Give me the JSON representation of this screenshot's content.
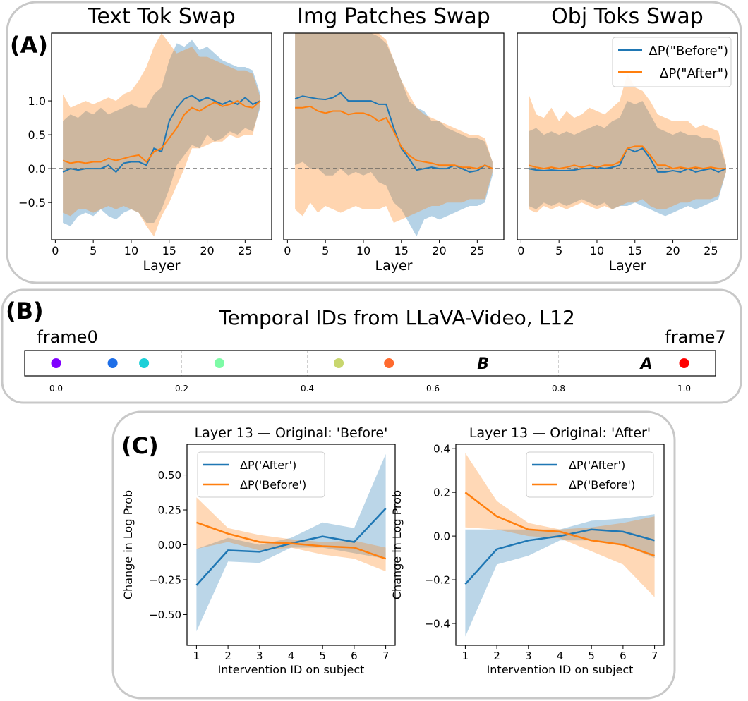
{
  "panel_labels": {
    "a": "(A)",
    "b": "(B)",
    "c": "(C)"
  },
  "legend_a": [
    {
      "label": "ΔP(\"Before\")",
      "color": "#1f77b4"
    },
    {
      "label": "ΔP(\"After\")",
      "color": "#ff7f0e"
    }
  ],
  "legend_c": [
    {
      "label": "ΔP('After')",
      "color": "#1f77b4"
    },
    {
      "label": "ΔP('Before')",
      "color": "#ff7f0e"
    }
  ],
  "chart_data": [
    {
      "type": "line",
      "title": "Text Tok Swap",
      "xlabel": "Layer",
      "ylabel": "",
      "xlim": [
        -0.5,
        28.5
      ],
      "ylim": [
        -1.05,
        2.0
      ],
      "xticks": [
        0,
        5,
        10,
        15,
        20,
        25
      ],
      "yticks": [
        -0.5,
        0.0,
        0.5,
        1.0
      ],
      "ytick_labels": [
        "−0.5",
        "0.0",
        "0.5",
        "1.0"
      ],
      "zero_line": true,
      "x": [
        1,
        2,
        3,
        4,
        5,
        6,
        7,
        8,
        9,
        10,
        11,
        12,
        13,
        14,
        15,
        16,
        17,
        18,
        19,
        20,
        21,
        22,
        23,
        24,
        25,
        26,
        27
      ],
      "series": [
        {
          "name": "ΔP(\"Before\")",
          "color": "#1f77b4",
          "values": [
            -0.05,
            0.0,
            -0.02,
            0.0,
            0.0,
            0.0,
            0.05,
            -0.05,
            0.08,
            0.1,
            0.1,
            0.05,
            0.3,
            0.25,
            0.7,
            0.9,
            1.03,
            1.08,
            1.0,
            1.05,
            1.0,
            0.95,
            1.0,
            0.95,
            1.05,
            0.95,
            1.0
          ],
          "lower": [
            -0.8,
            -0.85,
            -0.7,
            -0.65,
            -0.7,
            -0.6,
            -0.7,
            -0.75,
            -0.65,
            -0.6,
            -0.65,
            -0.8,
            -0.8,
            -0.6,
            -0.3,
            0.05,
            0.2,
            0.35,
            0.3,
            0.5,
            0.4,
            0.45,
            0.55,
            0.5,
            0.6,
            0.55,
            0.9
          ],
          "upper": [
            0.7,
            0.8,
            0.75,
            0.85,
            0.8,
            0.9,
            0.8,
            0.85,
            0.9,
            0.95,
            0.9,
            0.9,
            1.1,
            1.2,
            1.6,
            1.85,
            1.8,
            1.9,
            1.75,
            1.8,
            1.7,
            1.6,
            1.55,
            1.5,
            1.5,
            1.45,
            1.1
          ]
        },
        {
          "name": "ΔP(\"After\")",
          "color": "#ff7f0e",
          "values": [
            0.12,
            0.08,
            0.1,
            0.08,
            0.1,
            0.1,
            0.15,
            0.12,
            0.15,
            0.18,
            0.2,
            0.1,
            0.25,
            0.3,
            0.45,
            0.6,
            0.8,
            0.9,
            0.85,
            0.92,
            0.98,
            0.92,
            0.95,
            1.0,
            0.92,
            0.9,
            1.0
          ],
          "lower": [
            -0.65,
            -0.7,
            -0.6,
            -0.6,
            -0.65,
            -0.6,
            -0.55,
            -0.6,
            -0.55,
            -0.6,
            -0.65,
            -0.85,
            -1.0,
            -0.7,
            -0.5,
            -0.25,
            0.0,
            0.3,
            0.3,
            0.35,
            0.4,
            0.4,
            0.5,
            0.45,
            0.5,
            0.5,
            0.95
          ],
          "upper": [
            1.1,
            0.9,
            0.95,
            1.0,
            0.95,
            1.0,
            1.05,
            1.0,
            1.1,
            1.15,
            1.3,
            1.5,
            1.8,
            2.0,
            1.85,
            1.7,
            1.75,
            1.8,
            1.65,
            1.65,
            1.6,
            1.55,
            1.5,
            1.45,
            1.45,
            1.4,
            1.05
          ]
        }
      ]
    },
    {
      "type": "line",
      "title": "Img Patches Swap",
      "xlabel": "Layer",
      "ylabel": "",
      "xlim": [
        -0.5,
        28.5
      ],
      "ylim": [
        -1.05,
        2.0
      ],
      "xticks": [
        0,
        5,
        10,
        15,
        20,
        25
      ],
      "yticks": [],
      "ytick_labels": [],
      "zero_line": true,
      "x": [
        1,
        2,
        3,
        4,
        5,
        6,
        7,
        8,
        9,
        10,
        11,
        12,
        13,
        14,
        15,
        16,
        17,
        18,
        19,
        20,
        21,
        22,
        23,
        24,
        25,
        26,
        27
      ],
      "series": [
        {
          "name": "ΔP(\"Before\")",
          "color": "#1f77b4",
          "values": [
            1.03,
            1.07,
            1.05,
            1.03,
            1.02,
            1.05,
            1.12,
            1.0,
            1.0,
            1.0,
            1.0,
            0.95,
            0.95,
            0.6,
            0.3,
            0.15,
            -0.02,
            0.0,
            0.02,
            0.0,
            0.0,
            0.05,
            0.0,
            -0.05,
            -0.03,
            0.05,
            0.0
          ],
          "lower": [
            0.05,
            0.1,
            0.0,
            0.0,
            -0.1,
            -0.1,
            0.0,
            -0.1,
            -0.05,
            -0.1,
            -0.05,
            -0.2,
            -0.25,
            -0.5,
            -0.6,
            -0.8,
            -1.0,
            -0.75,
            -0.7,
            -0.75,
            -0.7,
            -0.65,
            -0.6,
            -0.55,
            -0.55,
            -0.5,
            -0.1
          ],
          "upper": [
            2.0,
            2.0,
            2.0,
            2.0,
            2.0,
            2.0,
            2.0,
            2.0,
            2.0,
            2.0,
            2.0,
            1.95,
            1.85,
            1.6,
            1.3,
            1.0,
            0.9,
            0.85,
            0.7,
            0.7,
            0.6,
            0.55,
            0.5,
            0.45,
            0.45,
            0.4,
            0.1
          ]
        },
        {
          "name": "ΔP(\"After\")",
          "color": "#ff7f0e",
          "values": [
            0.9,
            0.9,
            0.92,
            0.85,
            0.82,
            0.85,
            0.85,
            0.8,
            0.82,
            0.82,
            0.78,
            0.7,
            0.75,
            0.55,
            0.32,
            0.2,
            0.12,
            0.1,
            0.08,
            0.05,
            0.05,
            0.05,
            0.02,
            0.02,
            0.0,
            0.05,
            0.0
          ],
          "lower": [
            -0.6,
            -0.7,
            -0.5,
            -0.65,
            -0.55,
            -0.6,
            -0.65,
            -0.6,
            -0.55,
            -0.6,
            -0.6,
            -0.6,
            -0.55,
            -0.8,
            -0.75,
            -0.7,
            -0.65,
            -0.6,
            -0.55,
            -0.55,
            -0.5,
            -0.5,
            -0.5,
            -0.45,
            -0.45,
            -0.45,
            -0.05
          ],
          "upper": [
            2.0,
            2.0,
            2.0,
            2.0,
            2.0,
            2.0,
            2.0,
            2.0,
            2.0,
            2.0,
            2.0,
            2.0,
            1.9,
            1.6,
            1.3,
            1.1,
            0.9,
            0.8,
            0.75,
            0.7,
            0.65,
            0.6,
            0.55,
            0.5,
            0.5,
            0.45,
            0.1
          ]
        }
      ]
    },
    {
      "type": "line",
      "title": "Obj Toks Swap",
      "xlabel": "Layer",
      "ylabel": "",
      "xlim": [
        -0.5,
        28.5
      ],
      "ylim": [
        -1.05,
        2.0
      ],
      "xticks": [
        0,
        5,
        10,
        15,
        20,
        25
      ],
      "yticks": [],
      "ytick_labels": [],
      "zero_line": true,
      "legend": "top-right",
      "x": [
        1,
        2,
        3,
        4,
        5,
        6,
        7,
        8,
        9,
        10,
        11,
        12,
        13,
        14,
        15,
        16,
        17,
        18,
        19,
        20,
        21,
        22,
        23,
        24,
        25,
        26,
        27
      ],
      "series": [
        {
          "name": "ΔP(\"Before\")",
          "color": "#1f77b4",
          "values": [
            0.0,
            -0.02,
            -0.03,
            -0.02,
            -0.03,
            -0.03,
            -0.02,
            0.0,
            0.0,
            0.02,
            0.0,
            0.02,
            0.05,
            0.3,
            0.25,
            0.3,
            0.15,
            -0.05,
            -0.05,
            -0.03,
            -0.05,
            0.0,
            -0.05,
            -0.02,
            0.0,
            -0.05,
            0.0
          ],
          "lower": [
            -0.55,
            -0.6,
            -0.5,
            -0.55,
            -0.5,
            -0.55,
            -0.5,
            -0.45,
            -0.5,
            -0.55,
            -0.5,
            -0.6,
            -0.55,
            -0.55,
            -0.5,
            -0.55,
            -0.6,
            -0.65,
            -0.7,
            -0.65,
            -0.6,
            -0.55,
            -0.6,
            -0.55,
            -0.5,
            -0.45,
            -0.05
          ],
          "upper": [
            0.55,
            0.6,
            0.5,
            0.55,
            0.5,
            0.55,
            0.5,
            0.55,
            0.6,
            0.65,
            0.6,
            0.7,
            0.75,
            1.0,
            0.95,
            1.0,
            0.8,
            0.6,
            0.55,
            0.5,
            0.55,
            0.5,
            0.5,
            0.45,
            0.45,
            0.4,
            0.05
          ]
        },
        {
          "name": "ΔP(\"After\")",
          "color": "#ff7f0e",
          "values": [
            0.05,
            0.02,
            0.0,
            0.02,
            0.0,
            0.02,
            0.05,
            0.02,
            0.05,
            0.02,
            0.05,
            0.05,
            0.1,
            0.3,
            0.33,
            0.33,
            0.2,
            0.05,
            0.05,
            0.0,
            0.02,
            0.0,
            0.02,
            0.0,
            0.02,
            0.0,
            0.0
          ],
          "lower": [
            -0.6,
            -0.65,
            -0.55,
            -0.6,
            -0.55,
            -0.6,
            -0.55,
            -0.5,
            -0.55,
            -0.6,
            -0.55,
            -0.6,
            -0.55,
            -0.5,
            -0.5,
            -0.45,
            -0.55,
            -0.6,
            -0.6,
            -0.55,
            -0.5,
            -0.5,
            -0.45,
            -0.45,
            -0.45,
            -0.4,
            -0.05
          ],
          "upper": [
            1.1,
            0.8,
            0.75,
            0.9,
            0.7,
            0.85,
            0.75,
            0.8,
            0.9,
            0.85,
            0.8,
            0.9,
            1.0,
            1.4,
            1.2,
            1.15,
            1.0,
            0.8,
            0.75,
            0.7,
            0.7,
            0.7,
            0.6,
            0.65,
            0.6,
            0.55,
            0.05
          ]
        }
      ]
    },
    {
      "type": "scatter",
      "title": "Temporal IDs from LLaVA-Video, L12",
      "xlim": [
        -0.05,
        1.05
      ],
      "xticks": [
        0.0,
        0.2,
        0.4,
        0.6,
        0.8,
        1.0
      ],
      "xtick_labels": [
        "0.0",
        "0.2",
        "0.4",
        "0.6",
        "0.8",
        "1.0"
      ],
      "annotations": [
        {
          "text": "frame0",
          "x": 0.0
        },
        {
          "text": "frame7",
          "x": 1.0
        }
      ],
      "points": [
        {
          "x": 0.0,
          "color": "#8000ff"
        },
        {
          "x": 0.09,
          "color": "#1f6fe8"
        },
        {
          "x": 0.14,
          "color": "#1cd0d8"
        },
        {
          "x": 0.26,
          "color": "#7dfba6"
        },
        {
          "x": 0.45,
          "color": "#c8d66e"
        },
        {
          "x": 0.53,
          "color": "#ff6a2e"
        },
        {
          "x": 1.0,
          "color": "#ff0000"
        }
      ],
      "letter_marks": [
        {
          "text": "B",
          "x": 0.68
        },
        {
          "text": "A",
          "x": 0.94
        }
      ]
    },
    {
      "type": "line",
      "title": "Layer 13 — Original: 'Before'",
      "xlabel": "Intervention ID on subject",
      "ylabel": "Change in Log Prob",
      "xlim": [
        0.7,
        7.3
      ],
      "ylim": [
        -0.72,
        0.72
      ],
      "xticks": [
        1,
        2,
        3,
        4,
        5,
        6,
        7
      ],
      "yticks": [
        -0.5,
        -0.25,
        0.0,
        0.25,
        0.5
      ],
      "ytick_labels": [
        "−0.50",
        "−0.25",
        "0.00",
        "0.25",
        "0.50"
      ],
      "legend": "upper-left",
      "x": [
        1,
        2,
        3,
        4,
        5,
        6,
        7
      ],
      "series": [
        {
          "name": "ΔP('After')",
          "color": "#1f77b4",
          "values": [
            -0.29,
            -0.04,
            -0.05,
            0.01,
            0.06,
            0.02,
            0.26
          ],
          "lower": [
            -0.62,
            -0.12,
            -0.13,
            -0.02,
            -0.02,
            -0.06,
            -0.1
          ],
          "upper": [
            -0.03,
            0.05,
            0.0,
            0.05,
            0.16,
            0.12,
            0.65
          ]
        },
        {
          "name": "ΔP('Before')",
          "color": "#ff7f0e",
          "values": [
            0.16,
            0.08,
            0.02,
            0.01,
            -0.01,
            -0.02,
            -0.1
          ],
          "lower": [
            -0.03,
            0.02,
            -0.04,
            -0.02,
            -0.07,
            -0.1,
            -0.19
          ],
          "upper": [
            0.34,
            0.12,
            0.07,
            0.04,
            0.02,
            0.03,
            -0.02
          ]
        }
      ]
    },
    {
      "type": "line",
      "title": "Layer 13 — Original: 'After'",
      "xlabel": "Intervention ID on subject",
      "ylabel": "Change in Log Prob",
      "xlim": [
        0.7,
        7.3
      ],
      "ylim": [
        -0.5,
        0.42
      ],
      "xticks": [
        1,
        2,
        3,
        4,
        5,
        6,
        7
      ],
      "yticks": [
        -0.4,
        -0.2,
        0.0,
        0.2,
        0.4
      ],
      "ytick_labels": [
        "−0.4",
        "−0.2",
        "0.0",
        "0.2",
        "0.4"
      ],
      "legend": "upper-right",
      "x": [
        1,
        2,
        3,
        4,
        5,
        6,
        7
      ],
      "series": [
        {
          "name": "ΔP('After')",
          "color": "#1f77b4",
          "values": [
            -0.22,
            -0.06,
            -0.02,
            0.0,
            0.03,
            0.02,
            -0.02
          ],
          "lower": [
            -0.46,
            -0.13,
            -0.09,
            -0.02,
            -0.02,
            -0.04,
            -0.1
          ],
          "upper": [
            0.03,
            0.03,
            0.03,
            0.03,
            0.07,
            0.08,
            0.1
          ]
        },
        {
          "name": "ΔP('Before')",
          "color": "#ff7f0e",
          "values": [
            0.2,
            0.09,
            0.03,
            0.02,
            -0.02,
            -0.04,
            -0.09
          ],
          "lower": [
            0.04,
            0.03,
            0.0,
            -0.01,
            -0.07,
            -0.13,
            -0.28
          ],
          "upper": [
            0.38,
            0.16,
            0.06,
            0.03,
            0.04,
            0.06,
            0.09
          ]
        }
      ]
    }
  ]
}
